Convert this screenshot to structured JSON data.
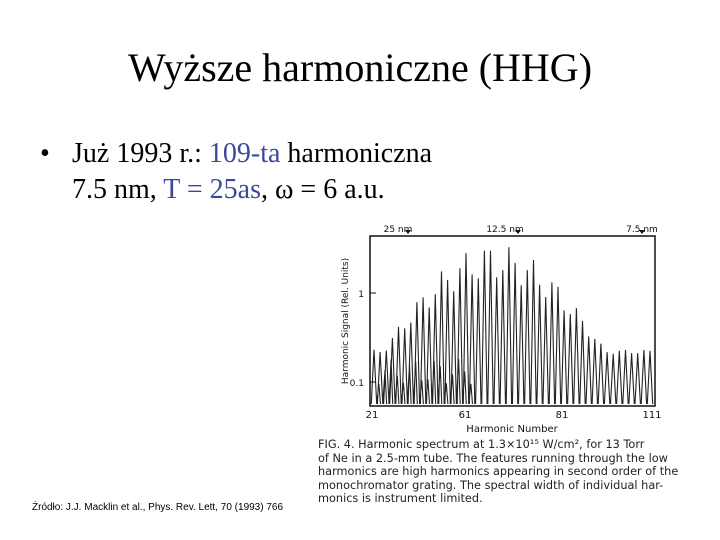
{
  "slide": {
    "title": "Wyższe harmoniczne (HHG)",
    "bullet_line1_pre": "Już 1993 r.: ",
    "bullet_line1_blue": "109-ta",
    "bullet_line1_post": " harmoniczna",
    "bullet_line2_pre": "7.5 nm, ",
    "bullet_line2_blue": "T = 25as",
    "bullet_line2_post": ", ω = 6 a.u.",
    "bullet_marker": "•"
  },
  "figure": {
    "top_labels": [
      "25 nm",
      "12.5 nm",
      "7.5 nm"
    ],
    "ylabel": "Harmonic Signal (Rel. Units)",
    "y_ticks": [
      "1",
      "0.1"
    ],
    "x_ticks": [
      "21",
      "61",
      "81",
      "111"
    ],
    "xlabel": "Harmonic Number",
    "caption_lines": [
      "FIG. 4.  Harmonic spectrum at 1.3×10¹⁵ W/cm², for 13 Torr",
      "of Ne in a 2.5-mm tube.  The features running through the low",
      "harmonics are high harmonics appearing in second order of the",
      "monochromator grating.  The spectral width of individual har-",
      "monics is instrument limited."
    ]
  },
  "source": "Źródło: J.J. Macklin et al., Phys. Rev. Lett, 70 (1993) 766"
}
